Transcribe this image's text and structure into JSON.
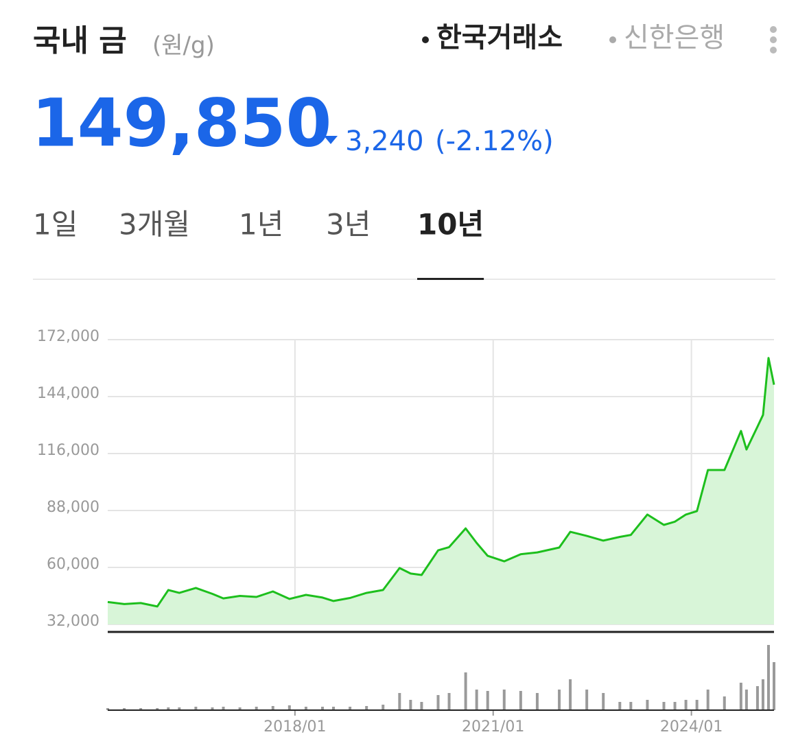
{
  "header": {
    "title": "국내 금",
    "unit": "(원/g)",
    "sources": [
      "한국거래소",
      "신한은행"
    ],
    "active_source": 0
  },
  "price": {
    "value": "149,850",
    "change": "3,240",
    "change_pct": "(-2.12%)"
  },
  "tabs": {
    "items": [
      "1일",
      "3개월",
      "1년",
      "3년",
      "10년"
    ],
    "active": 4
  },
  "chart_data": {
    "type": "line",
    "color": "#1dbf1d",
    "fill": "#d8f5d8",
    "volume_color": "#9a9a9a",
    "grid": true,
    "x": [
      "2015/03",
      "2015/06",
      "2015/09",
      "2015/12",
      "2016/02",
      "2016/04",
      "2016/07",
      "2016/10",
      "2016/12",
      "2017/03",
      "2017/06",
      "2017/09",
      "2017/12",
      "2018/03",
      "2018/06",
      "2018/08",
      "2018/11",
      "2019/02",
      "2019/05",
      "2019/08",
      "2019/10",
      "2019/12",
      "2020/03",
      "2020/05",
      "2020/08",
      "2020/10",
      "2020/12",
      "2021/03",
      "2021/06",
      "2021/09",
      "2022/01",
      "2022/03",
      "2022/06",
      "2022/09",
      "2022/12",
      "2023/02",
      "2023/05",
      "2023/08",
      "2023/10",
      "2023/12",
      "2024/02",
      "2024/04",
      "2024/07",
      "2024/10",
      "2024/11",
      "2025/01",
      "2025/02",
      "2025/03",
      "2025/04"
    ],
    "values": [
      43000,
      42000,
      42500,
      40800,
      48900,
      47500,
      49900,
      47000,
      44800,
      46000,
      45500,
      48200,
      44500,
      46500,
      45200,
      43500,
      45000,
      47500,
      48900,
      59700,
      57000,
      56300,
      68400,
      70000,
      79200,
      72000,
      65700,
      63000,
      66500,
      67400,
      69800,
      77500,
      75500,
      73200,
      75000,
      76000,
      86000,
      80900,
      82500,
      86000,
      87700,
      107900,
      107900,
      127100,
      118000,
      129200,
      135000,
      163000,
      149850
    ],
    "volume": [
      3,
      3,
      3,
      3,
      4,
      4,
      5,
      4,
      5,
      4,
      5,
      6,
      7,
      5,
      5,
      5,
      5,
      6,
      8,
      25,
      15,
      12,
      22,
      25,
      55,
      30,
      28,
      30,
      28,
      25,
      30,
      45,
      30,
      25,
      12,
      12,
      15,
      12,
      12,
      15,
      15,
      30,
      20,
      40,
      30,
      35,
      45,
      95,
      70
    ],
    "xlim": [
      "2015/03",
      "2025/04"
    ],
    "xticks": [
      "2018/01",
      "2021/01",
      "2024/01"
    ],
    "ylim": [
      32000,
      172000
    ],
    "yticks": [
      {
        "value": 32000,
        "label": "32,000"
      },
      {
        "value": 60000,
        "label": "60,000"
      },
      {
        "value": 88000,
        "label": "88,000"
      },
      {
        "value": 116000,
        "label": "116,000"
      },
      {
        "value": 144000,
        "label": "144,000"
      },
      {
        "value": 172000,
        "label": "172,000"
      }
    ]
  }
}
